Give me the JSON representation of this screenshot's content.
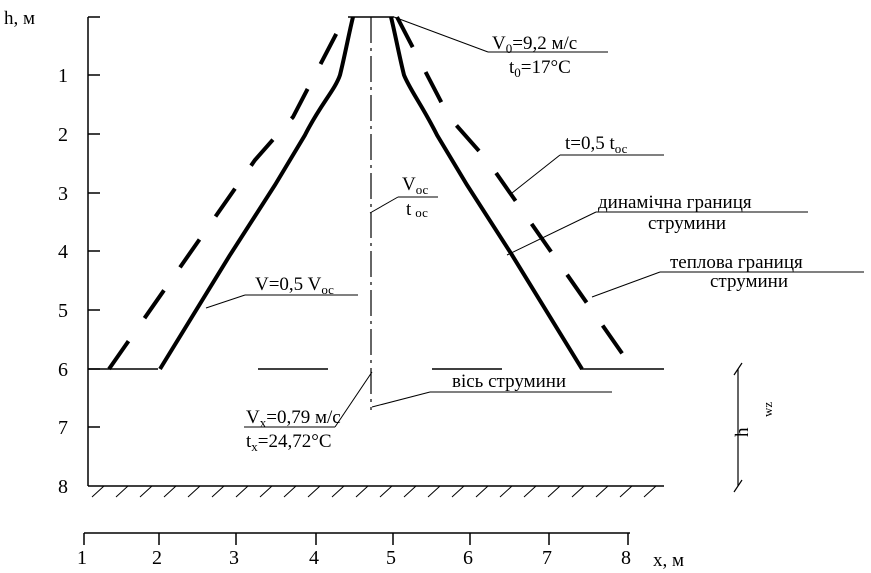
{
  "axes": {
    "y_title": "h, м",
    "y_ticks": [
      "1",
      "2",
      "3",
      "4",
      "5",
      "6",
      "7",
      "8"
    ],
    "x_ticks": [
      "1",
      "2",
      "3",
      "4",
      "5",
      "6",
      "7",
      "8"
    ],
    "x_title": "x, м"
  },
  "labels": {
    "v0_main": "V",
    "v0_sub": "0",
    "v0_value": "=9,2 м/с",
    "t0_main": "t",
    "t0_sub": "0",
    "t0_value": "=17°С",
    "voc_main": "V",
    "voc_sub": "ос",
    "toc_main": "t",
    "toc_sub": "ос",
    "v_half_main": "V=0,5 V",
    "v_half_sub": "ос",
    "t_half_main": "t=0,5 t",
    "t_half_sub": "ос",
    "dynamic_boundary_1": "динамічна границя",
    "dynamic_boundary_2": "струмини",
    "thermal_boundary_1": "теплова границя",
    "thermal_boundary_2": "струмини",
    "axis_label": "вісь струмини",
    "vx_main": "V",
    "vx_sub": "x",
    "vx_value": "=0,79 м/с",
    "tx_main": "t",
    "tx_sub": "x",
    "tx_value": "=24,72°С",
    "hwz_main": "h",
    "hwz_sub": "wz"
  }
}
